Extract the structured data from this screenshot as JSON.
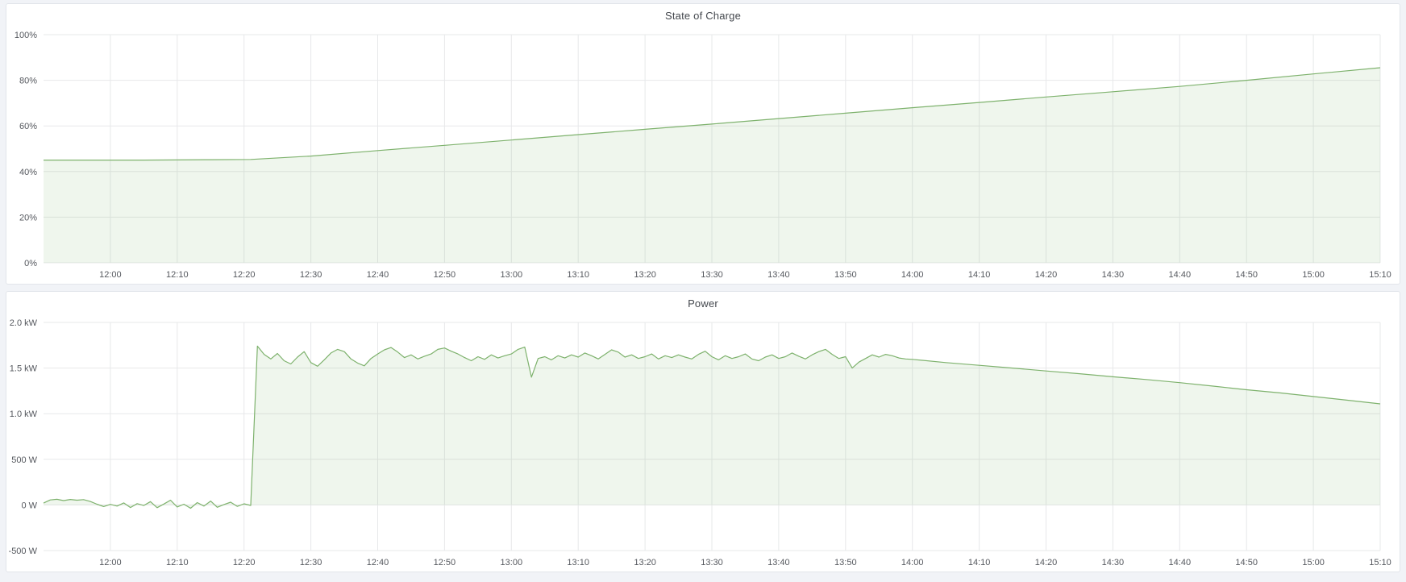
{
  "page": {
    "background": "#f1f3f7",
    "panel_background": "#ffffff",
    "panel_border": "#e2e5ea",
    "grid_color": "#e7e8ea",
    "tick_text_color": "#55585e",
    "title_color": "#44484e"
  },
  "panels": [
    {
      "title": "State of Charge"
    },
    {
      "title": "Power"
    }
  ],
  "chart_data": [
    {
      "type": "area",
      "title": "State of Charge",
      "ylabel": "",
      "xlabel": "",
      "line_color": "#7eb26d",
      "fill_color": "rgba(126,178,109,0.12)",
      "xlim": [
        710,
        910
      ],
      "ylim": [
        0,
        100
      ],
      "grid": true,
      "legend": "none",
      "x_ticks": [
        {
          "t": 720,
          "label": "12:00"
        },
        {
          "t": 730,
          "label": "12:10"
        },
        {
          "t": 740,
          "label": "12:20"
        },
        {
          "t": 750,
          "label": "12:30"
        },
        {
          "t": 760,
          "label": "12:40"
        },
        {
          "t": 770,
          "label": "12:50"
        },
        {
          "t": 780,
          "label": "13:00"
        },
        {
          "t": 790,
          "label": "13:10"
        },
        {
          "t": 800,
          "label": "13:20"
        },
        {
          "t": 810,
          "label": "13:30"
        },
        {
          "t": 820,
          "label": "13:40"
        },
        {
          "t": 830,
          "label": "13:50"
        },
        {
          "t": 840,
          "label": "14:00"
        },
        {
          "t": 850,
          "label": "14:10"
        },
        {
          "t": 860,
          "label": "14:20"
        },
        {
          "t": 870,
          "label": "14:30"
        },
        {
          "t": 880,
          "label": "14:40"
        },
        {
          "t": 890,
          "label": "14:50"
        },
        {
          "t": 900,
          "label": "15:00"
        },
        {
          "t": 910,
          "label": "15:10"
        }
      ],
      "y_ticks": [
        {
          "v": 0,
          "label": "0%"
        },
        {
          "v": 20,
          "label": "20%"
        },
        {
          "v": 40,
          "label": "40%"
        },
        {
          "v": 60,
          "label": "60%"
        },
        {
          "v": 80,
          "label": "80%"
        },
        {
          "v": 100,
          "label": "100%"
        }
      ],
      "points": [
        [
          710,
          45.0
        ],
        [
          715,
          45.0
        ],
        [
          720,
          45.0
        ],
        [
          725,
          45.0
        ],
        [
          730,
          45.1
        ],
        [
          735,
          45.2
        ],
        [
          741,
          45.3
        ],
        [
          750,
          46.8
        ],
        [
          760,
          49.2
        ],
        [
          770,
          51.5
        ],
        [
          780,
          53.8
        ],
        [
          790,
          56.2
        ],
        [
          800,
          58.5
        ],
        [
          810,
          60.8
        ],
        [
          820,
          63.2
        ],
        [
          830,
          65.6
        ],
        [
          840,
          68.0
        ],
        [
          850,
          70.3
        ],
        [
          860,
          72.7
        ],
        [
          870,
          75.0
        ],
        [
          880,
          77.3
        ],
        [
          890,
          80.0
        ],
        [
          900,
          82.8
        ],
        [
          910,
          85.5
        ]
      ]
    },
    {
      "type": "area",
      "title": "Power",
      "ylabel": "",
      "xlabel": "",
      "line_color": "#7eb26d",
      "fill_color": "rgba(126,178,109,0.12)",
      "xlim": [
        710,
        910
      ],
      "ylim": [
        -500,
        2000
      ],
      "grid": true,
      "legend": "none",
      "x_ticks": [
        {
          "t": 720,
          "label": "12:00"
        },
        {
          "t": 730,
          "label": "12:10"
        },
        {
          "t": 740,
          "label": "12:20"
        },
        {
          "t": 750,
          "label": "12:30"
        },
        {
          "t": 760,
          "label": "12:40"
        },
        {
          "t": 770,
          "label": "12:50"
        },
        {
          "t": 780,
          "label": "13:00"
        },
        {
          "t": 790,
          "label": "13:10"
        },
        {
          "t": 800,
          "label": "13:20"
        },
        {
          "t": 810,
          "label": "13:30"
        },
        {
          "t": 820,
          "label": "13:40"
        },
        {
          "t": 830,
          "label": "13:50"
        },
        {
          "t": 840,
          "label": "14:00"
        },
        {
          "t": 850,
          "label": "14:10"
        },
        {
          "t": 860,
          "label": "14:20"
        },
        {
          "t": 870,
          "label": "14:30"
        },
        {
          "t": 880,
          "label": "14:40"
        },
        {
          "t": 890,
          "label": "14:50"
        },
        {
          "t": 900,
          "label": "15:00"
        },
        {
          "t": 910,
          "label": "15:10"
        }
      ],
      "y_ticks": [
        {
          "v": -500,
          "label": "-500 W"
        },
        {
          "v": 0,
          "label": "0 W"
        },
        {
          "v": 500,
          "label": "500 W"
        },
        {
          "v": 1000,
          "label": "1.0 kW"
        },
        {
          "v": 1500,
          "label": "1.5 kW"
        },
        {
          "v": 2000,
          "label": "2.0 kW"
        }
      ],
      "points": [
        [
          710,
          20
        ],
        [
          711,
          55
        ],
        [
          712,
          62
        ],
        [
          713,
          48
        ],
        [
          714,
          60
        ],
        [
          715,
          52
        ],
        [
          716,
          58
        ],
        [
          717,
          38
        ],
        [
          718,
          8
        ],
        [
          719,
          -18
        ],
        [
          720,
          6
        ],
        [
          721,
          -12
        ],
        [
          722,
          22
        ],
        [
          723,
          -28
        ],
        [
          724,
          14
        ],
        [
          725,
          -6
        ],
        [
          726,
          36
        ],
        [
          727,
          -30
        ],
        [
          728,
          10
        ],
        [
          729,
          52
        ],
        [
          730,
          -22
        ],
        [
          731,
          8
        ],
        [
          732,
          -36
        ],
        [
          733,
          26
        ],
        [
          734,
          -12
        ],
        [
          735,
          42
        ],
        [
          736,
          -26
        ],
        [
          737,
          4
        ],
        [
          738,
          30
        ],
        [
          739,
          -16
        ],
        [
          740,
          12
        ],
        [
          741,
          -5
        ],
        [
          742,
          1740
        ],
        [
          743,
          1650
        ],
        [
          744,
          1600
        ],
        [
          745,
          1660
        ],
        [
          746,
          1580
        ],
        [
          747,
          1545
        ],
        [
          748,
          1620
        ],
        [
          749,
          1680
        ],
        [
          750,
          1560
        ],
        [
          751,
          1520
        ],
        [
          752,
          1590
        ],
        [
          753,
          1665
        ],
        [
          754,
          1705
        ],
        [
          755,
          1680
        ],
        [
          756,
          1600
        ],
        [
          757,
          1555
        ],
        [
          758,
          1525
        ],
        [
          759,
          1605
        ],
        [
          760,
          1655
        ],
        [
          761,
          1700
        ],
        [
          762,
          1725
        ],
        [
          763,
          1675
        ],
        [
          764,
          1615
        ],
        [
          765,
          1645
        ],
        [
          766,
          1600
        ],
        [
          767,
          1630
        ],
        [
          768,
          1655
        ],
        [
          769,
          1705
        ],
        [
          770,
          1720
        ],
        [
          771,
          1685
        ],
        [
          772,
          1655
        ],
        [
          773,
          1615
        ],
        [
          774,
          1580
        ],
        [
          775,
          1625
        ],
        [
          776,
          1595
        ],
        [
          777,
          1645
        ],
        [
          778,
          1610
        ],
        [
          779,
          1635
        ],
        [
          780,
          1655
        ],
        [
          781,
          1705
        ],
        [
          782,
          1730
        ],
        [
          783,
          1400
        ],
        [
          784,
          1605
        ],
        [
          785,
          1625
        ],
        [
          786,
          1590
        ],
        [
          787,
          1635
        ],
        [
          788,
          1610
        ],
        [
          789,
          1645
        ],
        [
          790,
          1620
        ],
        [
          791,
          1665
        ],
        [
          792,
          1635
        ],
        [
          793,
          1600
        ],
        [
          794,
          1650
        ],
        [
          795,
          1700
        ],
        [
          796,
          1675
        ],
        [
          797,
          1620
        ],
        [
          798,
          1645
        ],
        [
          799,
          1605
        ],
        [
          800,
          1625
        ],
        [
          801,
          1655
        ],
        [
          802,
          1600
        ],
        [
          803,
          1635
        ],
        [
          804,
          1615
        ],
        [
          805,
          1645
        ],
        [
          806,
          1620
        ],
        [
          807,
          1600
        ],
        [
          808,
          1650
        ],
        [
          809,
          1685
        ],
        [
          810,
          1625
        ],
        [
          811,
          1590
        ],
        [
          812,
          1635
        ],
        [
          813,
          1605
        ],
        [
          814,
          1625
        ],
        [
          815,
          1655
        ],
        [
          816,
          1600
        ],
        [
          817,
          1580
        ],
        [
          818,
          1620
        ],
        [
          819,
          1645
        ],
        [
          820,
          1605
        ],
        [
          821,
          1625
        ],
        [
          822,
          1665
        ],
        [
          823,
          1630
        ],
        [
          824,
          1600
        ],
        [
          825,
          1645
        ],
        [
          826,
          1680
        ],
        [
          827,
          1705
        ],
        [
          828,
          1650
        ],
        [
          829,
          1605
        ],
        [
          830,
          1625
        ],
        [
          831,
          1500
        ],
        [
          832,
          1565
        ],
        [
          833,
          1605
        ],
        [
          834,
          1645
        ],
        [
          835,
          1620
        ],
        [
          836,
          1650
        ],
        [
          837,
          1635
        ],
        [
          838,
          1610
        ],
        [
          839,
          1600
        ],
        [
          840,
          1595
        ],
        [
          845,
          1560
        ],
        [
          850,
          1530
        ],
        [
          855,
          1500
        ],
        [
          860,
          1468
        ],
        [
          865,
          1438
        ],
        [
          870,
          1405
        ],
        [
          875,
          1375
        ],
        [
          880,
          1340
        ],
        [
          885,
          1302
        ],
        [
          890,
          1262
        ],
        [
          895,
          1228
        ],
        [
          900,
          1188
        ],
        [
          905,
          1148
        ],
        [
          910,
          1108
        ]
      ]
    }
  ]
}
